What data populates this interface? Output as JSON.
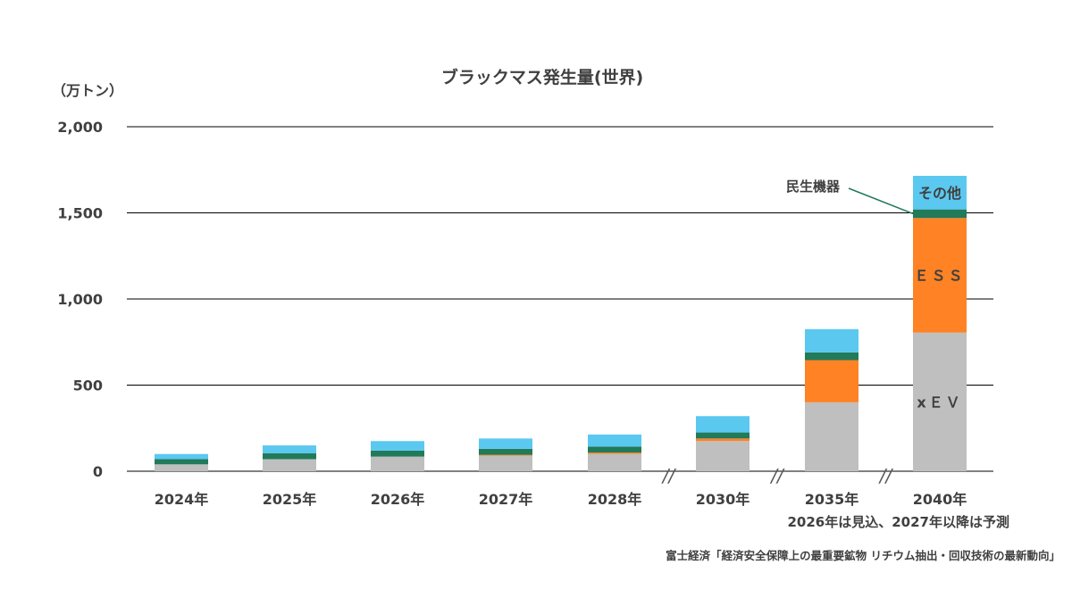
{
  "chart_data": {
    "type": "bar",
    "stacked": true,
    "title": "ブラックマス発生量(世界)",
    "unit_label": "（万トン）",
    "ylim": [
      0,
      2000
    ],
    "y_ticks": [
      "2,000",
      "1,500",
      "1,000",
      "500",
      "0"
    ],
    "y_tick_values": [
      2000,
      1500,
      1000,
      500,
      0
    ],
    "grid": true,
    "categories": [
      "2024年",
      "2025年",
      "2026年",
      "2027年",
      "2028年",
      "2030年",
      "2035年",
      "2040年"
    ],
    "axis_breaks_after": [
      "2028年",
      "2030年",
      "2035年"
    ],
    "axis_break_symbol": "//",
    "series": [
      {
        "name": "xＥＶ",
        "color": "#bfbfbf",
        "values": [
          40,
          70,
          85,
          90,
          100,
          175,
          400,
          805
        ]
      },
      {
        "name": "ＥＳＳ",
        "color": "#ff8225",
        "values": [
          0,
          0,
          0,
          5,
          8,
          15,
          245,
          665
        ]
      },
      {
        "name": "民生機器",
        "color": "#217a5a",
        "values": [
          30,
          35,
          35,
          35,
          35,
          35,
          45,
          50
        ]
      },
      {
        "name": "その他",
        "color": "#5bc8f0",
        "values": [
          30,
          45,
          55,
          60,
          70,
          95,
          135,
          195
        ]
      }
    ],
    "annotations": {
      "note": "2026年は見込、2027年以降は予測",
      "source": "富士経済「経済安全保障上の最重要鉱物 リチウム抽出・回収技術の最新動向」"
    }
  }
}
